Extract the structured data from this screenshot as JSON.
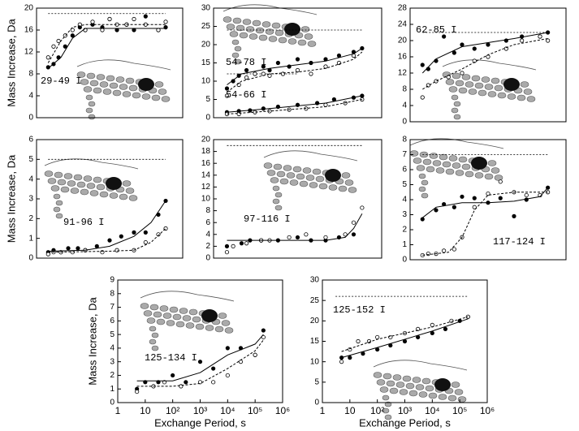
{
  "chart_data": [
    {
      "type": "scatter",
      "ylabel": "Mass Increase, Da",
      "xlim": [
        1,
        1000000
      ],
      "log_x": true,
      "ylim": [
        0,
        20
      ],
      "yticks": [
        0,
        4,
        8,
        12,
        16,
        20
      ],
      "labels": [
        "29-49 I"
      ],
      "reference_lines": [
        {
          "value": 19,
          "span": [
            3,
            200000
          ]
        }
      ],
      "series": [
        {
          "marker": "filled",
          "x": [
            3,
            5,
            8,
            15,
            30,
            60,
            100,
            200,
            500,
            1000,
            2000,
            5000,
            10000,
            30000,
            100000,
            200000
          ],
          "values": [
            9.2,
            9.8,
            11,
            13,
            15,
            16.5,
            16,
            17,
            16.5,
            18,
            16,
            17,
            16,
            18.5,
            16,
            16.5
          ]
        },
        {
          "marker": "open",
          "x": [
            3,
            5,
            8,
            15,
            30,
            60,
            100,
            200,
            500,
            1000,
            2000,
            5000,
            10000,
            30000,
            100000,
            200000
          ],
          "values": [
            11,
            13,
            14,
            15,
            16,
            17,
            16,
            17.5,
            16,
            18,
            17,
            17,
            18,
            17,
            16,
            17.5
          ]
        },
        {
          "line": "solid",
          "x": [
            3,
            10,
            30,
            100,
            1000,
            200000
          ],
          "values": [
            9,
            11,
            14.5,
            16.3,
            16.3,
            16.3
          ]
        },
        {
          "line": "dashed",
          "x": [
            3,
            10,
            30,
            100,
            1000,
            200000
          ],
          "values": [
            10,
            14,
            16.5,
            17,
            17,
            17
          ]
        }
      ]
    },
    {
      "type": "scatter",
      "xlim": [
        1,
        1000000
      ],
      "log_x": true,
      "ylim": [
        0,
        30
      ],
      "yticks": [
        0,
        5,
        10,
        15,
        20,
        25,
        30
      ],
      "labels": [
        "54-78 I",
        "54-66 I"
      ],
      "reference_lines": [
        {
          "value": 24,
          "span": [
            3,
            200000
          ]
        },
        {
          "value": 12,
          "span": [
            3,
            1000
          ]
        }
      ],
      "series": [
        {
          "marker": "filled",
          "x": [
            3,
            5,
            8,
            15,
            30,
            60,
            100,
            200,
            500,
            1000,
            3000,
            10000,
            30000,
            100000,
            200000
          ],
          "values": [
            8,
            10,
            11.5,
            13,
            12,
            14,
            13,
            15,
            14,
            16,
            15,
            16,
            17,
            18,
            19
          ]
        },
        {
          "marker": "open",
          "x": [
            3,
            8,
            15,
            30,
            60,
            100,
            300,
            1000,
            3000,
            10000,
            30000,
            100000
          ],
          "values": [
            6,
            9,
            11,
            12,
            12,
            11.5,
            12,
            13,
            12,
            14,
            15,
            17
          ]
        },
        {
          "line": "solid",
          "x": [
            3,
            10,
            100,
            1000,
            10000,
            100000,
            200000
          ],
          "values": [
            9,
            12,
            13.5,
            14.5,
            15.5,
            17.5,
            19
          ]
        },
        {
          "line": "dashed",
          "x": [
            3,
            10,
            100,
            1000,
            10000,
            100000,
            200000
          ],
          "values": [
            7,
            10,
            12,
            12.5,
            13.5,
            16,
            18
          ]
        },
        {
          "marker": "filled",
          "x": [
            3,
            8,
            20,
            60,
            200,
            1000,
            5000,
            20000,
            100000,
            200000
          ],
          "values": [
            1.5,
            1.8,
            2,
            2.5,
            3,
            3.5,
            4,
            5,
            5.5,
            6
          ]
        },
        {
          "marker": "open",
          "x": [
            3,
            8,
            30,
            100,
            500,
            2000,
            10000,
            50000,
            200000
          ],
          "values": [
            1,
            1,
            1.5,
            1.8,
            2.2,
            2.5,
            3.5,
            4,
            5
          ]
        },
        {
          "line": "solid",
          "x": [
            3,
            100,
            10000,
            200000
          ],
          "values": [
            1.5,
            2.5,
            4,
            6
          ]
        },
        {
          "line": "dashed",
          "x": [
            3,
            100,
            10000,
            200000
          ],
          "values": [
            1,
            1.8,
            3,
            5
          ]
        }
      ]
    },
    {
      "type": "scatter",
      "xlim": [
        1,
        1000000
      ],
      "log_x": true,
      "ylim": [
        0,
        28
      ],
      "yticks": [
        0,
        4,
        8,
        12,
        16,
        20,
        24,
        28
      ],
      "labels": [
        "62-85 I"
      ],
      "reference_lines": [
        {
          "value": 22,
          "span": [
            3,
            200000
          ]
        }
      ],
      "series": [
        {
          "marker": "filled",
          "x": [
            3,
            5,
            10,
            20,
            50,
            100,
            300,
            1000,
            5000,
            20000,
            100000,
            200000
          ],
          "values": [
            14,
            13,
            15,
            21,
            17,
            19,
            18,
            19,
            20,
            21,
            21,
            22
          ]
        },
        {
          "marker": "open",
          "x": [
            3,
            5,
            10,
            30,
            100,
            300,
            1000,
            5000,
            20000,
            100000,
            200000
          ],
          "values": [
            6,
            9,
            10,
            11,
            12,
            15,
            16,
            18,
            20,
            21,
            20
          ]
        },
        {
          "line": "solid",
          "x": [
            3,
            10,
            100,
            1000,
            10000,
            200000
          ],
          "values": [
            12,
            15.5,
            18.5,
            19.5,
            20.5,
            22
          ]
        },
        {
          "line": "dashed",
          "x": [
            3,
            10,
            100,
            1000,
            10000,
            200000
          ],
          "values": [
            8,
            10,
            13,
            16.5,
            19,
            20.5
          ]
        }
      ]
    },
    {
      "type": "scatter",
      "ylabel": "Mass Increase, Da",
      "xlim": [
        1,
        1000000
      ],
      "log_x": true,
      "ylim": [
        0,
        6
      ],
      "yticks": [
        0,
        1,
        2,
        3,
        4,
        5,
        6
      ],
      "labels": [
        "91-96 I"
      ],
      "reference_lines": [
        {
          "value": 5,
          "span": [
            3,
            200000
          ]
        }
      ],
      "series": [
        {
          "marker": "filled",
          "x": [
            3,
            5,
            10,
            20,
            50,
            100,
            300,
            1000,
            3000,
            10000,
            30000,
            100000,
            200000
          ],
          "values": [
            0.3,
            0.4,
            0.3,
            0.5,
            0.5,
            0.4,
            0.6,
            0.9,
            1.1,
            1.3,
            1.3,
            2.2,
            2.9
          ]
        },
        {
          "marker": "open",
          "x": [
            3,
            5,
            10,
            30,
            100,
            500,
            2000,
            10000,
            30000,
            100000,
            200000
          ],
          "values": [
            0.2,
            0.3,
            0.3,
            0.3,
            0.4,
            0.3,
            0.4,
            0.4,
            0.8,
            1.2,
            1.5
          ]
        },
        {
          "line": "solid",
          "x": [
            3,
            100,
            1000,
            10000,
            50000,
            200000
          ],
          "values": [
            0.35,
            0.4,
            0.6,
            1.1,
            1.8,
            2.9
          ]
        },
        {
          "line": "dashed",
          "x": [
            3,
            1000,
            10000,
            50000,
            200000
          ],
          "values": [
            0.3,
            0.35,
            0.4,
            0.8,
            1.5
          ]
        }
      ]
    },
    {
      "type": "scatter",
      "xlim": [
        1,
        1000000
      ],
      "log_x": true,
      "ylim": [
        0,
        20
      ],
      "yticks": [
        0,
        2,
        4,
        6,
        8,
        10,
        12,
        14,
        16,
        18,
        20
      ],
      "labels": [
        "97-116 I"
      ],
      "reference_lines": [
        {
          "value": 19,
          "span": [
            3,
            200000
          ]
        }
      ],
      "series": [
        {
          "marker": "filled",
          "x": [
            3,
            10,
            20,
            50,
            200,
            1000,
            3000,
            10000,
            30000,
            100000
          ],
          "values": [
            2,
            2.5,
            3,
            3,
            3,
            3.5,
            3,
            3,
            3.5,
            4
          ]
        },
        {
          "marker": "open",
          "x": [
            3,
            5,
            15,
            50,
            100,
            500,
            2000,
            10000,
            50000,
            100000,
            200000
          ],
          "values": [
            1,
            2,
            2.5,
            3,
            3,
            3.5,
            4,
            3.5,
            4,
            6,
            8.5
          ]
        },
        {
          "line": "solid",
          "x": [
            3,
            10000,
            50000,
            100000,
            200000
          ],
          "values": [
            3,
            3,
            3.5,
            5,
            7.5
          ]
        }
      ]
    },
    {
      "type": "scatter",
      "xlim": [
        1,
        1000000
      ],
      "log_x": true,
      "ylim": [
        0,
        8
      ],
      "yticks": [
        0,
        1,
        2,
        3,
        4,
        5,
        6,
        7,
        8
      ],
      "labels": [
        "117-124 I"
      ],
      "reference_lines": [
        {
          "value": 7,
          "span": [
            3,
            200000
          ]
        }
      ],
      "series": [
        {
          "marker": "filled",
          "x": [
            3,
            10,
            20,
            50,
            100,
            300,
            1000,
            3000,
            10000,
            30000,
            100000,
            200000
          ],
          "values": [
            2.7,
            3.3,
            3.7,
            3.5,
            4.2,
            4.1,
            3.8,
            4.1,
            2.9,
            4,
            4.3,
            4.8
          ]
        },
        {
          "marker": "open",
          "x": [
            3,
            5,
            10,
            20,
            50,
            100,
            300,
            1000,
            3000,
            10000,
            30000,
            100000,
            200000
          ],
          "values": [
            0.3,
            0.4,
            0.4,
            0.6,
            0.7,
            1.5,
            3.5,
            4.4,
            5.2,
            4.5,
            4.3,
            4.3,
            4.5
          ]
        },
        {
          "line": "solid",
          "x": [
            3,
            10,
            100,
            1000,
            10000,
            100000,
            200000
          ],
          "values": [
            2.8,
            3.5,
            3.8,
            3.8,
            3.9,
            4.2,
            4.8
          ]
        },
        {
          "line": "dashed",
          "x": [
            3,
            30,
            100,
            300,
            1000,
            10000,
            200000
          ],
          "values": [
            0.3,
            0.5,
            1.5,
            3.3,
            4.3,
            4.5,
            4.5
          ]
        }
      ]
    },
    {
      "type": "scatter",
      "ylabel": "Mass Increase, Da",
      "xlabel": "Exchange Period, s",
      "xlim": [
        1,
        1000000
      ],
      "log_x": true,
      "xticks": [
        1,
        10,
        {
          "value": 100,
          "label": "10²"
        },
        {
          "value": 1000,
          "label": "10³"
        },
        {
          "value": 10000,
          "label": "10⁴"
        },
        {
          "value": 100000,
          "label": "10⁵"
        },
        {
          "value": 1000000,
          "label": "10⁶"
        }
      ],
      "ylim": [
        0,
        9
      ],
      "yticks": [
        0,
        1,
        2,
        3,
        4,
        5,
        6,
        7,
        8,
        9
      ],
      "labels": [
        "125-134 I"
      ],
      "reference_lines": [
        {
          "value": 9,
          "span": [
            3,
            200000
          ]
        }
      ],
      "series": [
        {
          "marker": "filled",
          "x": [
            5,
            10,
            30,
            100,
            300,
            1000,
            3000,
            10000,
            30000,
            100000,
            200000
          ],
          "values": [
            1,
            1.5,
            1.5,
            2,
            1.5,
            3,
            2.5,
            4,
            4,
            3.5,
            5.3
          ]
        },
        {
          "marker": "open",
          "x": [
            5,
            20,
            50,
            200,
            1000,
            3000,
            10000,
            30000,
            100000,
            200000
          ],
          "values": [
            0.8,
            1.2,
            1.5,
            1.2,
            1.5,
            1.5,
            2,
            3,
            3.5,
            4.8
          ]
        },
        {
          "line": "solid",
          "x": [
            5,
            100,
            1000,
            10000,
            100000,
            200000
          ],
          "values": [
            1.6,
            1.6,
            2.2,
            3.5,
            4.3,
            5
          ]
        },
        {
          "line": "dashed",
          "x": [
            5,
            100,
            1000,
            10000,
            100000,
            200000
          ],
          "values": [
            1.2,
            1.2,
            1.4,
            2.5,
            3.8,
            4.6
          ]
        }
      ]
    },
    {
      "type": "scatter",
      "xlabel": "Exchange Period, s",
      "xlim": [
        1,
        1000000
      ],
      "log_x": true,
      "xticks": [
        1,
        10,
        {
          "value": 100,
          "label": "10²"
        },
        {
          "value": 1000,
          "label": "10³"
        },
        {
          "value": 10000,
          "label": "10⁴"
        },
        {
          "value": 100000,
          "label": "10⁵"
        },
        {
          "value": 1000000,
          "label": "10⁶"
        }
      ],
      "ylim": [
        0,
        30
      ],
      "yticks": [
        0,
        5,
        10,
        15,
        20,
        25,
        30
      ],
      "labels": [
        "125-152 I"
      ],
      "reference_lines": [
        {
          "value": 26,
          "span": [
            3,
            200000
          ]
        }
      ],
      "series": [
        {
          "marker": "filled",
          "x": [
            5,
            10,
            30,
            100,
            300,
            1000,
            3000,
            10000,
            30000,
            100000,
            200000
          ],
          "values": [
            11,
            11,
            12,
            13,
            14,
            15,
            16,
            17,
            18,
            20,
            21
          ]
        },
        {
          "marker": "open",
          "x": [
            5,
            10,
            20,
            50,
            100,
            300,
            1000,
            3000,
            10000,
            50000,
            200000
          ],
          "values": [
            10,
            13,
            15,
            15,
            16,
            16,
            17,
            18,
            19,
            20,
            21
          ]
        },
        {
          "line": "solid",
          "x": [
            5,
            100,
            10000,
            200000
          ],
          "values": [
            11,
            13.5,
            17.5,
            20.5
          ]
        },
        {
          "line": "dashed",
          "x": [
            5,
            100,
            10000,
            200000
          ],
          "values": [
            12.5,
            15.5,
            18.5,
            21
          ]
        }
      ]
    }
  ]
}
